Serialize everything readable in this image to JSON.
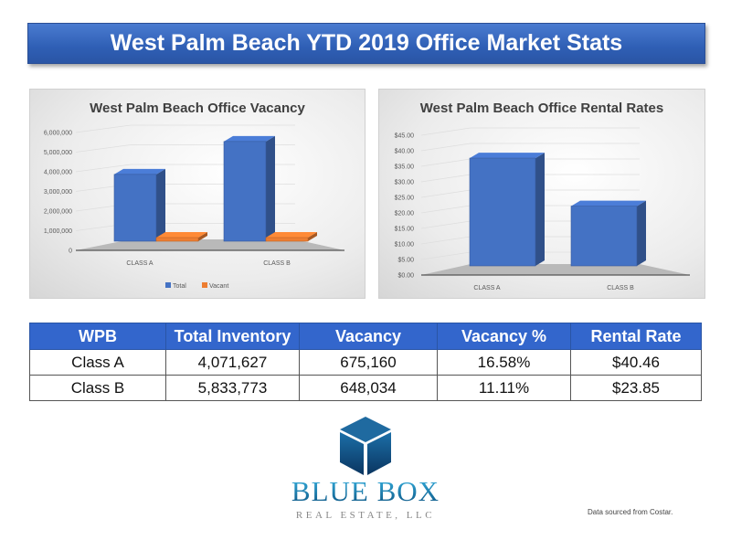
{
  "title": "West Palm Beach YTD 2019 Office Market Stats",
  "chart_data": [
    {
      "type": "bar",
      "title": "West Palm Beach Office Vacancy",
      "categories": [
        "CLASS A",
        "CLASS B"
      ],
      "series": [
        {
          "name": "Total",
          "values": [
            4071627,
            5833773
          ],
          "color": "#4472c4"
        },
        {
          "name": "Vacant",
          "values": [
            675160,
            648034
          ],
          "color": "#ed7d31"
        }
      ],
      "ylim": [
        0,
        6000000
      ],
      "yticks": [
        "0",
        "1,000,000",
        "2,000,000",
        "3,000,000",
        "4,000,000",
        "5,000,000",
        "6,000,000"
      ],
      "legend": "bottom",
      "grid": true
    },
    {
      "type": "bar",
      "title": "West Palm Beach Office Rental Rates",
      "categories": [
        "CLASS A",
        "CLASS B"
      ],
      "series": [
        {
          "name": "Rental Rate",
          "values": [
            40.46,
            23.85
          ],
          "color": "#4472c4"
        }
      ],
      "ylim": [
        0,
        45
      ],
      "yticks": [
        "$0.00",
        "$5.00",
        "$10.00",
        "$15.00",
        "$20.00",
        "$25.00",
        "$30.00",
        "$35.00",
        "$40.00",
        "$45.00"
      ],
      "legend": "none",
      "grid": true
    }
  ],
  "table": {
    "headers": [
      "WPB",
      "Total Inventory",
      "Vacancy",
      "Vacancy %",
      "Rental Rate"
    ],
    "rows": [
      [
        "Class A",
        "4,071,627",
        "675,160",
        "16.58%",
        "$40.46"
      ],
      [
        "Class B",
        "5,833,773",
        "648,034",
        "11.11%",
        "$23.85"
      ]
    ]
  },
  "logo": {
    "line1": "BLUE BOX",
    "line2": "REAL ESTATE, LLC"
  },
  "source_note": "Data sourced from Costar."
}
